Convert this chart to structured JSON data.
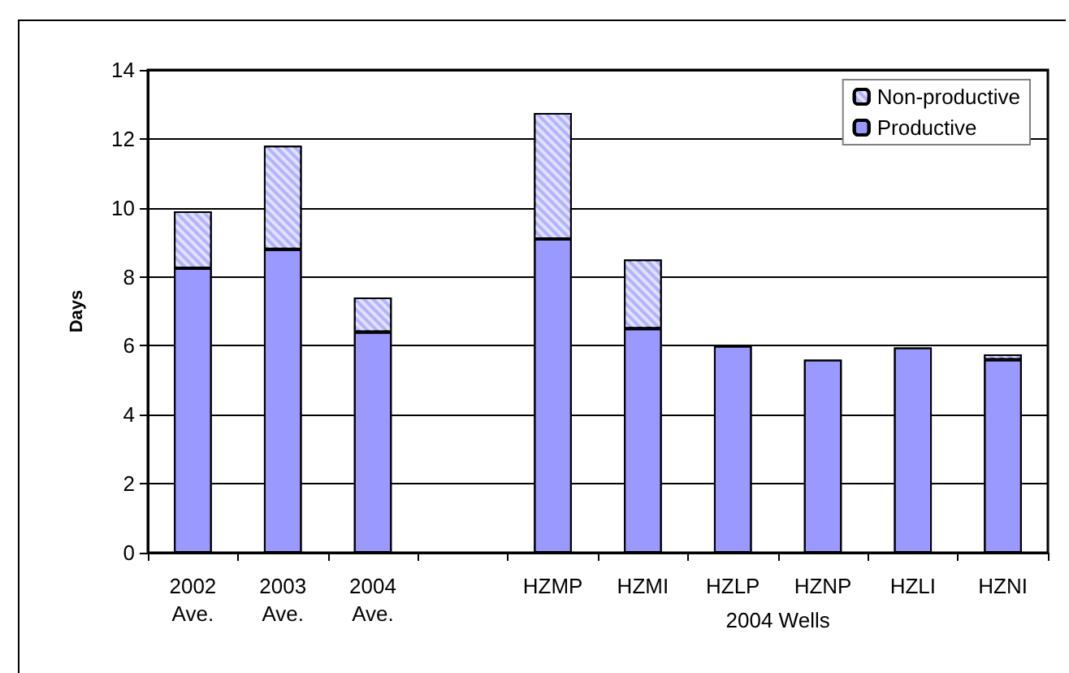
{
  "chart_data": {
    "type": "bar",
    "stacked": true,
    "ylabel": "Days",
    "categories": [
      "2002\nAve.",
      "2003\nAve.",
      "2004\nAve.",
      null,
      "HZMP",
      "HZMI",
      "HZLP",
      "HZNP",
      "HZLI",
      "HZNI"
    ],
    "series": [
      {
        "name": "Productive",
        "color": "#9999ff",
        "values": [
          8.25,
          8.8,
          6.4,
          null,
          9.1,
          6.5,
          6.0,
          5.6,
          5.95,
          5.6
        ]
      },
      {
        "name": "Non-productive",
        "color": "#b3b3ff",
        "values": [
          1.65,
          3.0,
          1.0,
          null,
          3.65,
          2.0,
          0,
          0,
          0,
          0.15
        ]
      }
    ],
    "ylim": [
      0,
      14
    ],
    "yticks": [
      0,
      2,
      4,
      6,
      8,
      10,
      12,
      14
    ],
    "grid": "y",
    "legend": "top right",
    "annotations": [
      "2004 Wells"
    ]
  }
}
